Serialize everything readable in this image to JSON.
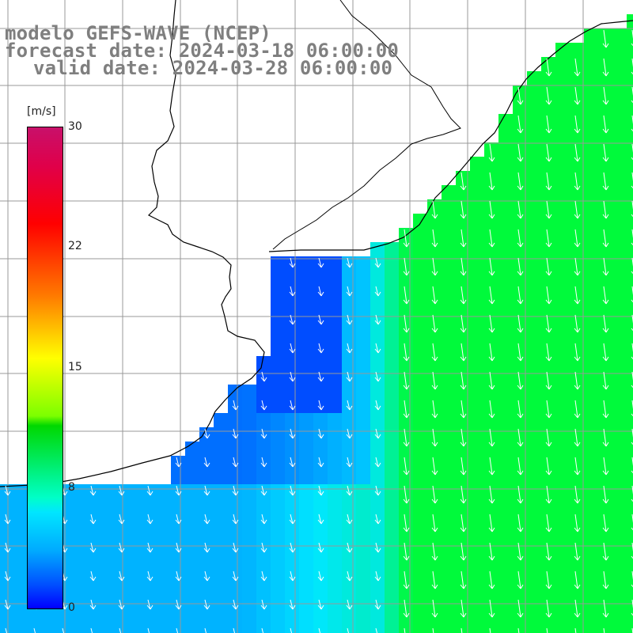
{
  "title": {
    "line1": "modelo GEFS-WAVE (NCEP)",
    "line2": "forecast date: 2024-03-18 06:00:00",
    "line3": "valid date: 2024-03-28 06:00:00"
  },
  "colorbar": {
    "unit": "[m/s]",
    "ticks": [
      "30",
      "22",
      "15",
      "8",
      "0"
    ]
  },
  "colors": {
    "low": "#0000ff",
    "mid": "#00e6ff",
    "high": "#00ff00",
    "land": "#ffffff",
    "grid": "#999999",
    "coast": "#000000",
    "arrow": "#ffffff"
  }
}
